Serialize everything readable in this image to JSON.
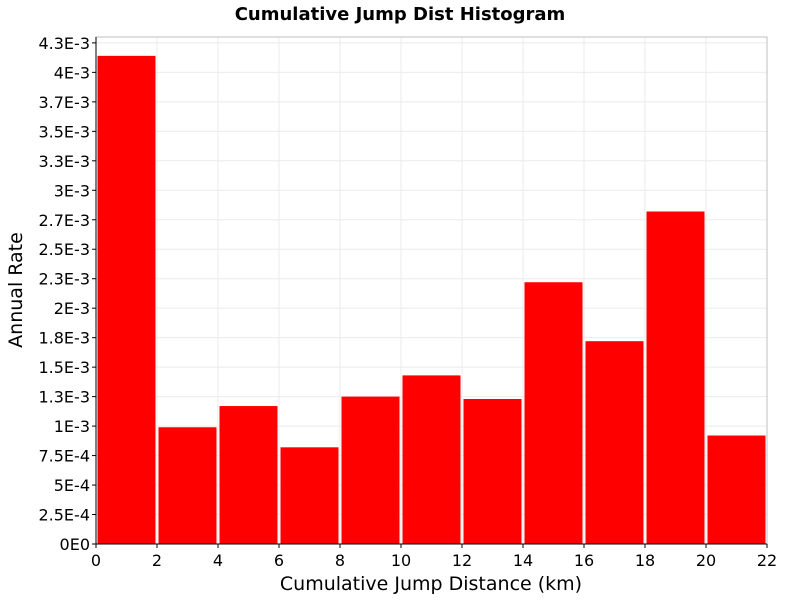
{
  "chart_data": {
    "type": "bar",
    "title": "Cumulative Jump Dist Histogram",
    "xlabel": "Cumulative Jump Distance (km)",
    "ylabel": "Annual Rate",
    "bar_color": "#ff0000",
    "xlim": [
      0,
      22
    ],
    "ylim": [
      0,
      0.0043
    ],
    "grid": true,
    "x_ticks": [
      0,
      2,
      4,
      6,
      8,
      10,
      12,
      14,
      16,
      18,
      20,
      22
    ],
    "x_tick_labels": [
      "0",
      "2",
      "4",
      "6",
      "8",
      "10",
      "12",
      "14",
      "16",
      "18",
      "20",
      "22"
    ],
    "y_ticks": [
      0,
      0.00025,
      0.0005,
      0.00075,
      0.001,
      0.00125,
      0.0015,
      0.00175,
      0.002,
      0.00225,
      0.0025,
      0.00275,
      0.003,
      0.00325,
      0.0035,
      0.00375,
      0.004,
      0.00425
    ],
    "y_tick_labels": [
      "0E0",
      "2.5E-4",
      "5E-4",
      "7.5E-4",
      "1E-3",
      "1.3E-3",
      "1.5E-3",
      "1.8E-3",
      "2E-3",
      "2.3E-3",
      "2.5E-3",
      "2.7E-3",
      "3E-3",
      "3.3E-3",
      "3.5E-3",
      "3.7E-3",
      "4E-3",
      "4.3E-3"
    ],
    "bins": [
      {
        "x0": 0,
        "x1": 2,
        "value": 0.00414
      },
      {
        "x0": 2,
        "x1": 4,
        "value": 0.00099
      },
      {
        "x0": 4,
        "x1": 6,
        "value": 0.00117
      },
      {
        "x0": 6,
        "x1": 8,
        "value": 0.00082
      },
      {
        "x0": 8,
        "x1": 10,
        "value": 0.00125
      },
      {
        "x0": 10,
        "x1": 12,
        "value": 0.00143
      },
      {
        "x0": 12,
        "x1": 14,
        "value": 0.00123
      },
      {
        "x0": 14,
        "x1": 16,
        "value": 0.00222
      },
      {
        "x0": 16,
        "x1": 18,
        "value": 0.00172
      },
      {
        "x0": 18,
        "x1": 20,
        "value": 0.00282
      },
      {
        "x0": 20,
        "x1": 22,
        "value": 0.00092
      }
    ]
  }
}
